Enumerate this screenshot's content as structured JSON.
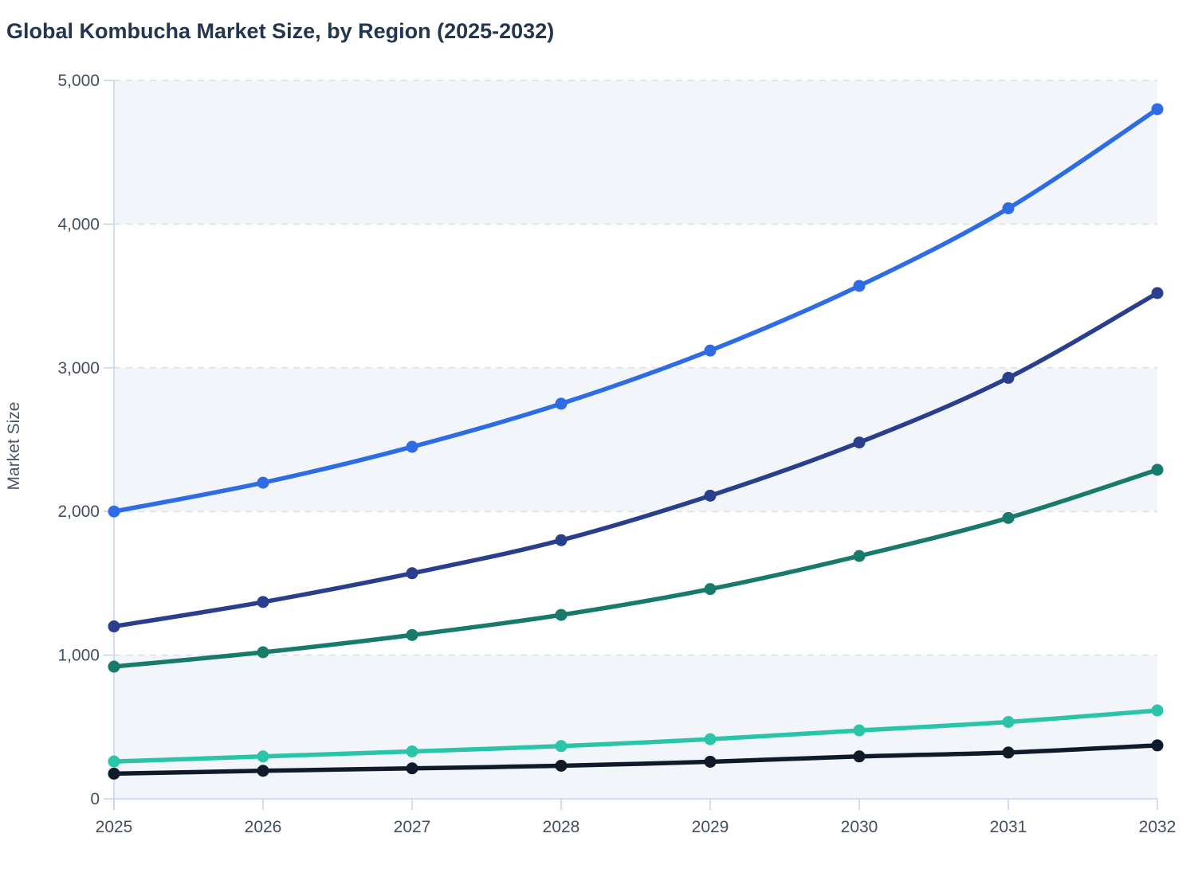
{
  "theme": {
    "background": "#ffffff",
    "title_color": "#24364f",
    "axis_line_color": "#c8d3f0",
    "grid_line_color": "#e1e4e9",
    "band_fill_color": "#f2f5f9",
    "tick_text_color": "#434e5e",
    "axis_title_color": "#4a566b"
  },
  "chart_data": {
    "type": "line",
    "title": "Global Kombucha Market Size, by Region (2025-2032)",
    "xlabel": "",
    "ylabel": "Market Size",
    "x": [
      2025,
      2026,
      2027,
      2028,
      2029,
      2030,
      2031,
      2032
    ],
    "x_tick_labels": [
      "2025",
      "2026",
      "2027",
      "2028",
      "2029",
      "2030",
      "2031",
      "2032"
    ],
    "ylim": [
      0,
      5000
    ],
    "y_ticks": [
      0,
      1000,
      2000,
      3000,
      4000,
      5000
    ],
    "y_tick_labels": [
      "0",
      "1,000",
      "2,000",
      "3,000",
      "4,000",
      "5,000"
    ],
    "grid": "horizontal-dashed",
    "legend": "none",
    "shaded_bands": [
      [
        0,
        1000
      ],
      [
        2000,
        3000
      ],
      [
        4000,
        5000
      ]
    ],
    "point_marker": "circle",
    "series": [
      {
        "name": "line-bright-blue",
        "color": "#2d6ce5",
        "values": [
          2000,
          2200,
          2450,
          2750,
          3120,
          3570,
          4110,
          4800
        ]
      },
      {
        "name": "line-navy",
        "color": "#293e8c",
        "values": [
          1200,
          1370,
          1570,
          1800,
          2110,
          2480,
          2930,
          3520
        ]
      },
      {
        "name": "line-sea-green",
        "color": "#177a6b",
        "values": [
          920,
          1020,
          1140,
          1280,
          1460,
          1690,
          1955,
          2290
        ]
      },
      {
        "name": "line-turquoise",
        "color": "#2ac4a9",
        "values": [
          260,
          295,
          330,
          367,
          415,
          476,
          535,
          615
        ]
      },
      {
        "name": "line-dark-navy",
        "color": "#0f1b2b",
        "values": [
          175,
          195,
          212,
          230,
          258,
          295,
          322,
          372
        ]
      }
    ]
  }
}
